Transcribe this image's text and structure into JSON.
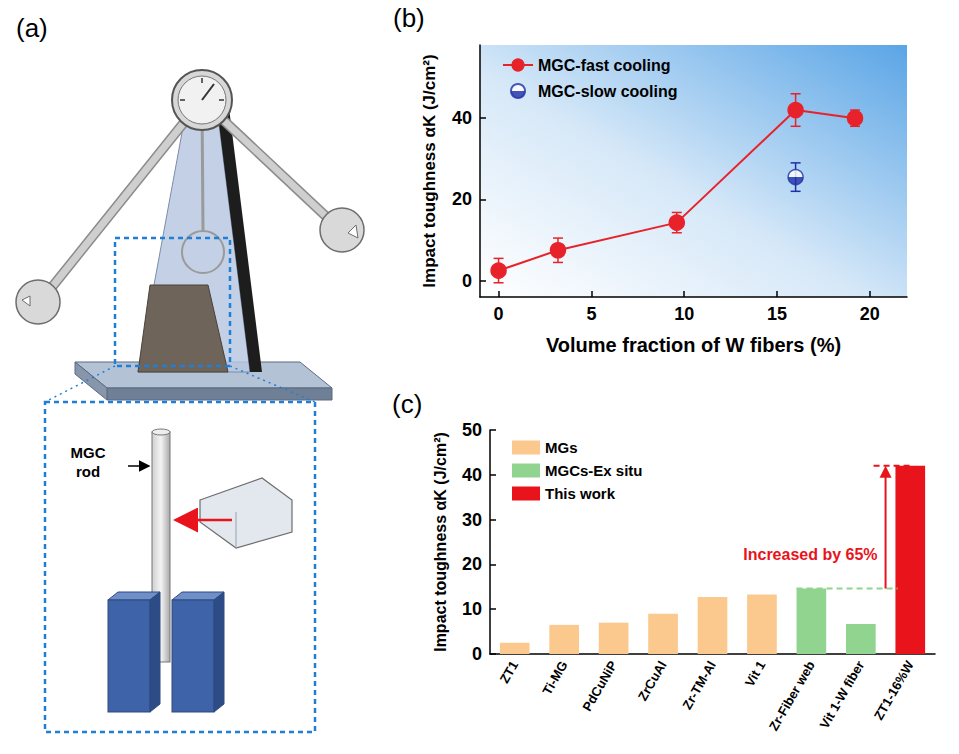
{
  "diagram": {
    "panel": "(a)",
    "rod_label": "MGC rod"
  },
  "chart_data": [
    {
      "panel": "(b)",
      "type": "line",
      "x_label": "Volume fraction of W fibers (%)",
      "y_label": "Impact toughness αK (J/cm²)",
      "xlim": [
        -1,
        22
      ],
      "xticks": [
        0,
        5,
        10,
        15,
        20
      ],
      "ylim": [
        -4,
        58
      ],
      "yticks": [
        0,
        20,
        40
      ],
      "grid": false,
      "legend": "upper left",
      "series": [
        {
          "name": "MGC-fast cooling",
          "type": "line",
          "color": "#e8222a",
          "marker": "circle",
          "line_style": "solid",
          "x": [
            0,
            3.2,
            9.6,
            16,
            19.2
          ],
          "values": [
            2.5,
            7.5,
            14.3,
            42,
            40
          ],
          "errors": [
            3,
            3,
            2.5,
            4,
            2
          ]
        },
        {
          "name": "MGC-slow cooling",
          "type": "scatter",
          "color": "#1f2fa6",
          "marker": "half_circle",
          "x": [
            16
          ],
          "values": [
            25.5
          ],
          "errors": [
            3.5
          ]
        }
      ]
    },
    {
      "panel": "(c)",
      "type": "bar",
      "y_label": "Impact toughness αK (J/cm²)",
      "categories": [
        "ZT1",
        "Ti-MG",
        "PdCuNiP",
        "ZrCuAl",
        "Zr-TM-Al",
        "Vit 1",
        "Zr-Fiber web",
        "Vit 1-W fiber",
        "ZT1-16%W"
      ],
      "ylim": [
        0,
        50
      ],
      "yticks": [
        0,
        10,
        20,
        30,
        40,
        50
      ],
      "grid": false,
      "legend": "upper left",
      "series": [
        {
          "name": "MGs",
          "color": "#fbc98e",
          "values": [
            2.5,
            6.5,
            7,
            9,
            12.7,
            13.3,
            null,
            null,
            null
          ]
        },
        {
          "name": "MGCs-Ex situ",
          "color": "#90d490",
          "values": [
            null,
            null,
            null,
            null,
            null,
            null,
            14.6,
            6.7,
            null
          ]
        },
        {
          "name": "This work",
          "color": "#e8131b",
          "values": [
            null,
            null,
            null,
            null,
            null,
            null,
            null,
            null,
            42
          ]
        }
      ],
      "annotation": {
        "text": "Increased by 65%",
        "from": 14.6,
        "to": 42
      }
    }
  ]
}
